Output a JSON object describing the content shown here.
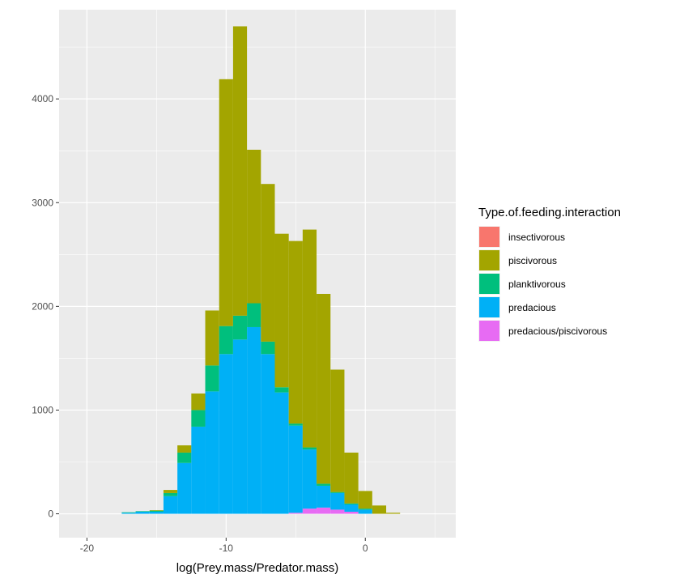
{
  "chart_data": {
    "type": "bar",
    "subtype": "stacked-histogram",
    "xlabel": "log(Prey.mass/Predator.mass)",
    "ylabel": "",
    "xlim": [
      -22,
      6.5
    ],
    "ylim": [
      -230,
      4860
    ],
    "x_ticks": [
      -20,
      -10,
      0
    ],
    "y_ticks": [
      0,
      1000,
      2000,
      3000,
      4000
    ],
    "grid": true,
    "legend": {
      "title": "Type.of.feeding.interaction",
      "position": "right"
    },
    "bins": {
      "x_start": [
        -17.5,
        -16.5,
        -15.5,
        -14.5,
        -13.5,
        -12.5,
        -11.5,
        -10.5,
        -9.5,
        -8.5,
        -7.5,
        -6.5,
        -5.5,
        -4.5,
        -3.5,
        -2.5,
        -1.5,
        -0.5,
        0.5,
        1.5
      ],
      "width": 1
    },
    "series": [
      {
        "name": "insectivorous",
        "color": "#F8766D",
        "values": [
          0,
          0,
          0,
          0,
          0,
          0,
          0,
          0,
          0,
          0,
          0,
          0,
          0,
          0,
          0,
          0,
          0,
          0,
          0,
          0
        ]
      },
      {
        "name": "piscivorous",
        "color": "#A3A500",
        "values": [
          0,
          0,
          5,
          30,
          70,
          160,
          530,
          2380,
          2790,
          1480,
          1520,
          1480,
          1760,
          2100,
          1830,
          1180,
          490,
          170,
          80,
          10
        ]
      },
      {
        "name": "planktivorous",
        "color": "#00BF7D",
        "values": [
          5,
          5,
          10,
          30,
          100,
          160,
          250,
          270,
          230,
          230,
          120,
          50,
          20,
          20,
          20,
          10,
          10,
          10,
          0,
          0
        ]
      },
      {
        "name": "predacious",
        "color": "#00B0F6",
        "values": [
          10,
          20,
          20,
          170,
          490,
          840,
          1180,
          1540,
          1680,
          1800,
          1540,
          1170,
          840,
          570,
          210,
          160,
          70,
          40,
          0,
          0
        ]
      },
      {
        "name": "predacious/piscivorous",
        "color": "#E76BF3",
        "values": [
          0,
          0,
          0,
          0,
          0,
          0,
          0,
          0,
          0,
          0,
          0,
          0,
          10,
          50,
          60,
          40,
          20,
          0,
          0,
          0
        ]
      }
    ]
  }
}
